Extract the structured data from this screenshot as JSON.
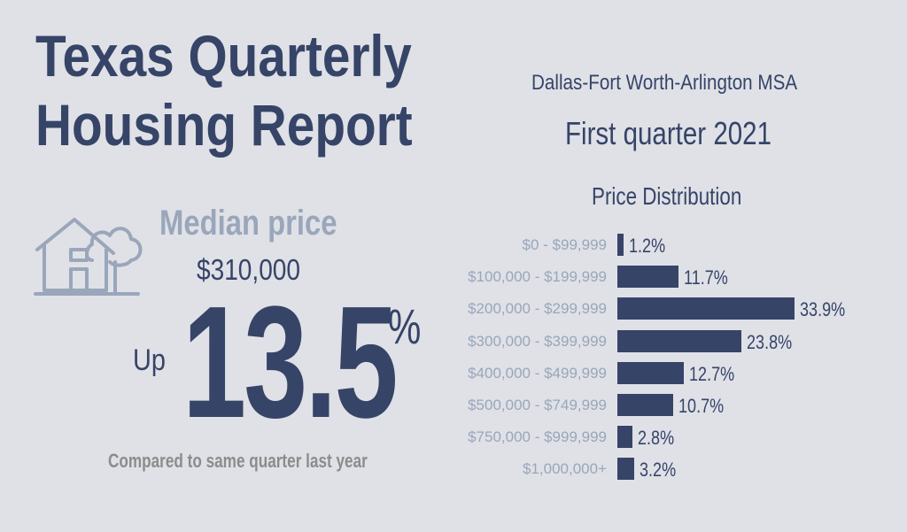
{
  "header": {
    "title_line1": "Texas Quarterly",
    "title_line2": "Housing Report",
    "region": "Dallas-Fort Worth-Arlington MSA",
    "period": "First quarter 2021"
  },
  "median": {
    "label": "Median price",
    "value": "$310,000",
    "change_prefix": "Up",
    "change_value": "13.5",
    "change_unit": "%",
    "note": "Compared to same quarter last year"
  },
  "icons": {
    "house": "house-with-tree-icon"
  },
  "colors": {
    "primary": "#364467",
    "muted": "#9aa6ba",
    "background": "#dfe1e7"
  },
  "chart_data": {
    "type": "bar",
    "orientation": "horizontal",
    "title": "Price Distribution",
    "categories": [
      "$0 - $99,999",
      "$100,000 - $199,999",
      "$200,000 - $299,999",
      "$300,000 - $399,999",
      "$400,000 - $499,999",
      "$500,000 - $749,999",
      "$750,000 - $999,999",
      "$1,000,000+"
    ],
    "values": [
      1.2,
      11.7,
      33.9,
      23.8,
      12.7,
      10.7,
      2.8,
      3.2
    ],
    "value_labels": [
      "1.2%",
      "11.7%",
      "33.9%",
      "23.8%",
      "12.7%",
      "10.7%",
      "2.8%",
      "3.2%"
    ],
    "grid": false,
    "legend": "none"
  }
}
